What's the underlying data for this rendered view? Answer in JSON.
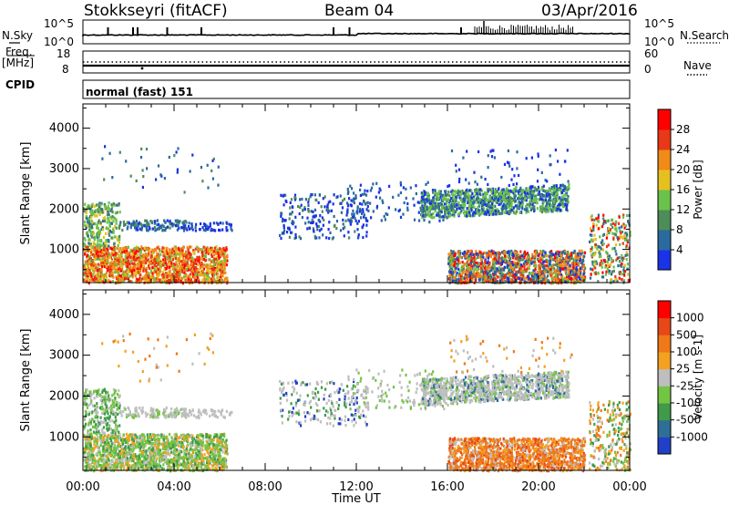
{
  "header": {
    "station": "Stokkseyri (fitACF)",
    "beam": "Beam 04",
    "date": "03/Apr/2016"
  },
  "summary_panels": {
    "nsky_label": "N.Sky",
    "nsky_ticks": [
      "10^5",
      "10^0"
    ],
    "nsearch_label": "N.Search",
    "nsearch_ticks": [
      "10^5",
      "10^0"
    ],
    "freq_label": "Freq.",
    "freq_unit": "[MHz]",
    "freq_ticks": [
      "18",
      "8"
    ],
    "nave_label": "Nave",
    "nave_ticks": [
      "60",
      "0"
    ],
    "cpid_label": "CPID",
    "cpid_value": "normal (fast) 151"
  },
  "chart_data": [
    {
      "type": "heatmap",
      "quantity": "Power",
      "ylabel": "Slant Range [km]",
      "y_ticks": [
        "4000",
        "3000",
        "2000",
        "1000"
      ],
      "ylim": [
        180,
        4600
      ],
      "colorbar_label": "Power [dB]",
      "colorbar_ticks": [
        "28",
        "24",
        "20",
        "16",
        "12",
        "8",
        "4"
      ],
      "colors": [
        "#1a33e6",
        "#2a6a9e",
        "#4e8c5a",
        "#6ac24a",
        "#e6c020",
        "#f08a18",
        "#e83818",
        "#ff0000"
      ]
    },
    {
      "type": "heatmap",
      "quantity": "Velocity",
      "ylabel": "Slant Range [km]",
      "y_ticks": [
        "4000",
        "3000",
        "2000",
        "1000"
      ],
      "ylim": [
        180,
        4600
      ],
      "colorbar_label": "Velocity [m s-1]",
      "colorbar_ticks": [
        "1000",
        "500",
        "100",
        "25",
        "-25",
        "-100",
        "-500",
        "-1000"
      ],
      "colors": [
        "#2040c8",
        "#2f6e96",
        "#3f9a4a",
        "#74c444",
        "#bebebe",
        "#f4a020",
        "#f07818",
        "#e84818",
        "#ff0000"
      ]
    }
  ],
  "x_axis": {
    "ticks": [
      "00:00",
      "04:00",
      "08:00",
      "12:00",
      "16:00",
      "20:00",
      "00:00"
    ],
    "xlabel": "Time UT"
  }
}
